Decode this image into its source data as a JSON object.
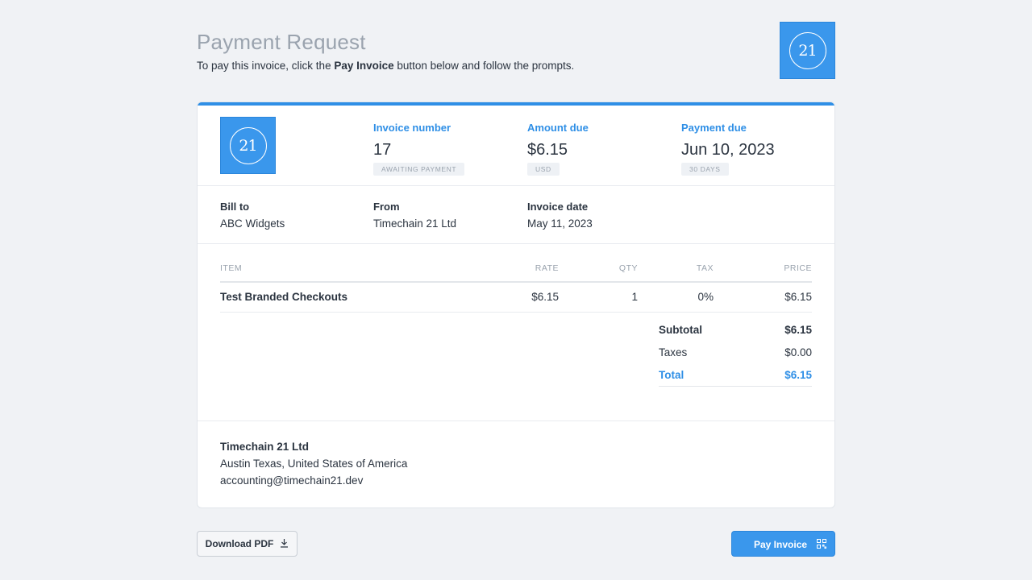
{
  "header": {
    "title": "Payment Request",
    "subtitle_pre": "To pay this invoice, click the ",
    "subtitle_bold": "Pay Invoice",
    "subtitle_post": " button below and follow the prompts.",
    "logo_text": "21"
  },
  "invoice": {
    "logo_text": "21",
    "number_label": "Invoice number",
    "number": "17",
    "status_badge": "AWAITING PAYMENT",
    "amount_label": "Amount due",
    "amount": "$6.15",
    "currency_badge": "USD",
    "due_label": "Payment due",
    "due_date": "Jun 10, 2023",
    "terms_badge": "30 DAYS"
  },
  "parties": {
    "bill_to_label": "Bill to",
    "bill_to": "ABC Widgets",
    "from_label": "From",
    "from": "Timechain 21 Ltd",
    "date_label": "Invoice date",
    "date": "May 11, 2023"
  },
  "table": {
    "columns": {
      "item": "ITEM",
      "rate": "RATE",
      "qty": "QTY",
      "tax": "TAX",
      "price": "PRICE"
    },
    "rows": [
      {
        "item": "Test Branded Checkouts",
        "rate": "$6.15",
        "qty": "1",
        "tax": "0%",
        "price": "$6.15"
      }
    ]
  },
  "totals": {
    "subtotal_label": "Subtotal",
    "subtotal": "$6.15",
    "taxes_label": "Taxes",
    "taxes": "$0.00",
    "total_label": "Total",
    "total": "$6.15"
  },
  "footer": {
    "company": "Timechain 21 Ltd",
    "address": "Austin Texas, United States of America",
    "email": "accounting@timechain21.dev"
  },
  "actions": {
    "download_label": "Download PDF",
    "pay_label": "Pay Invoice"
  },
  "colors": {
    "accent": "#2f8fe6",
    "logo_bg": "#3a97ec",
    "background": "#f0f2f5"
  },
  "icons": {
    "download": "download-icon",
    "qr": "qr-code-icon"
  }
}
